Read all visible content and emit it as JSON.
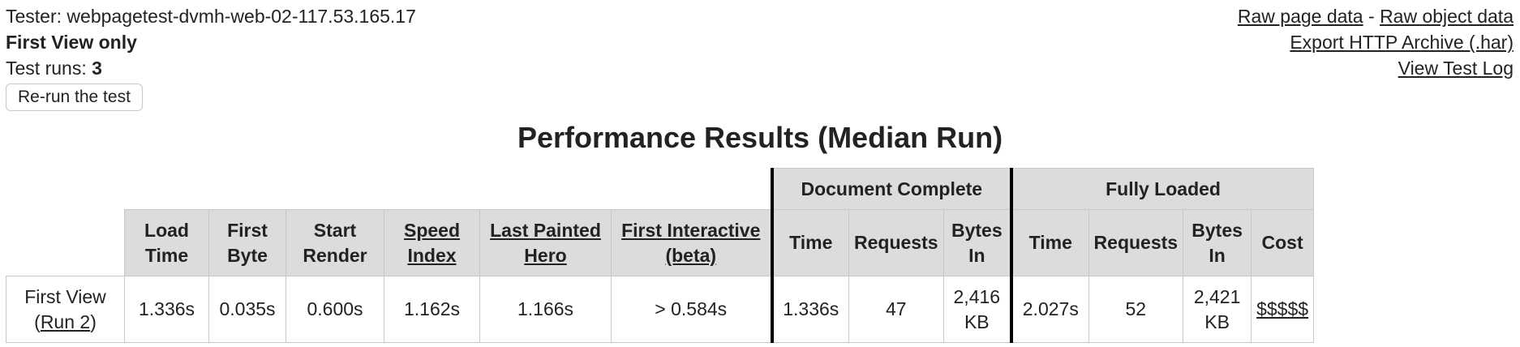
{
  "header": {
    "tester_label": "Tester:",
    "tester_value": "webpagetest-dvmh-web-02-117.53.165.17",
    "view_mode": "First View only",
    "test_runs_label": "Test runs:",
    "test_runs_value": "3",
    "rerun_button": "Re-run the test"
  },
  "links": {
    "raw_page_data": "Raw page data",
    "separator": "-",
    "raw_object_data": "Raw object data",
    "export_har": "Export HTTP Archive (.har)",
    "view_test_log": "View Test Log"
  },
  "results": {
    "title": "Performance Results (Median Run)",
    "groups": {
      "document_complete": "Document Complete",
      "fully_loaded": "Fully Loaded"
    },
    "columns": {
      "load_time": [
        "Load",
        "Time"
      ],
      "first_byte": [
        "First",
        "Byte"
      ],
      "start_render": [
        "Start",
        "Render"
      ],
      "speed_index": [
        "Speed",
        "Index"
      ],
      "last_painted_hero": [
        "Last Painted",
        "Hero"
      ],
      "first_interactive": [
        "First Interactive",
        "(beta)"
      ],
      "dc_time": "Time",
      "dc_requests": "Requests",
      "dc_bytes_in": [
        "Bytes",
        "In"
      ],
      "fl_time": "Time",
      "fl_requests": "Requests",
      "fl_bytes_in": [
        "Bytes",
        "In"
      ],
      "fl_cost": "Cost"
    },
    "row": {
      "label": "First View",
      "run_link": "Run 2",
      "load_time": "1.336s",
      "first_byte": "0.035s",
      "start_render": "0.600s",
      "speed_index": "1.162s",
      "last_painted_hero": "1.166s",
      "first_interactive": "> 0.584s",
      "dc_time": "1.336s",
      "dc_requests": "47",
      "dc_bytes_in": [
        "2,416",
        "KB"
      ],
      "fl_time": "2.027s",
      "fl_requests": "52",
      "fl_bytes_in": [
        "2,421",
        "KB"
      ],
      "fl_cost": "$$$$$"
    }
  }
}
